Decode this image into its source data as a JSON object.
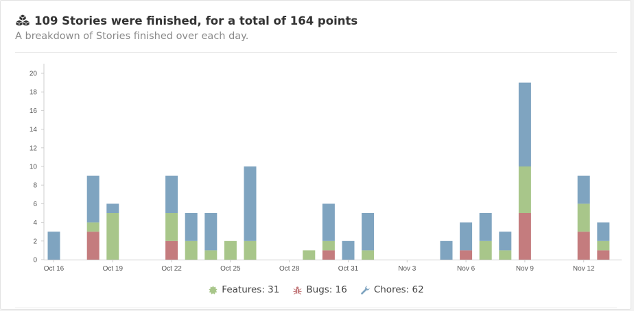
{
  "header": {
    "icon": "cubes-icon",
    "title": "109 Stories were finished, for a total of 164 points",
    "subtitle": "A breakdown of Stories finished over each day."
  },
  "legend": {
    "features": {
      "icon": "starburst-icon",
      "label": "Features: 31"
    },
    "bugs": {
      "icon": "bug-icon",
      "label": "Bugs: 16"
    },
    "chores": {
      "icon": "wrench-icon",
      "label": "Chores: 62"
    }
  },
  "colors": {
    "features": "#a8c68a",
    "bugs": "#c47c7e",
    "chores": "#7fa4c0"
  },
  "chart_data": {
    "type": "bar",
    "stacked": true,
    "title": "109 Stories were finished, for a total of 164 points",
    "subtitle": "A breakdown of Stories finished over each day.",
    "categories": [
      "Oct 16",
      "Oct 17",
      "Oct 18",
      "Oct 19",
      "Oct 20",
      "Oct 21",
      "Oct 22",
      "Oct 23",
      "Oct 24",
      "Oct 25",
      "Oct 26",
      "Oct 27",
      "Oct 28",
      "Oct 29",
      "Oct 30",
      "Oct 31",
      "Nov 1",
      "Nov 2",
      "Nov 3",
      "Nov 4",
      "Nov 5",
      "Nov 6",
      "Nov 7",
      "Nov 8",
      "Nov 9",
      "Nov 10",
      "Nov 11",
      "Nov 12",
      "Nov 13"
    ],
    "xticks": [
      "Oct 16",
      "Oct 19",
      "Oct 22",
      "Oct 25",
      "Oct 28",
      "Oct 31",
      "Nov 3",
      "Nov 6",
      "Nov 9",
      "Nov 12"
    ],
    "ylim": [
      0,
      20
    ],
    "yticks": [
      0,
      2,
      4,
      6,
      8,
      10,
      12,
      14,
      16,
      18,
      20
    ],
    "series": [
      {
        "name": "Bugs",
        "key": "bugs",
        "values": [
          0,
          0,
          3,
          0,
          0,
          0,
          2,
          0,
          0,
          0,
          0,
          0,
          0,
          0,
          1,
          0,
          0,
          0,
          0,
          0,
          0,
          1,
          0,
          0,
          5,
          0,
          0,
          3,
          1
        ]
      },
      {
        "name": "Features",
        "key": "features",
        "values": [
          0,
          0,
          1,
          5,
          0,
          0,
          3,
          2,
          1,
          2,
          2,
          0,
          0,
          1,
          1,
          0,
          1,
          0,
          0,
          0,
          0,
          0,
          2,
          1,
          5,
          0,
          0,
          3,
          1
        ]
      },
      {
        "name": "Chores",
        "key": "chores",
        "values": [
          3,
          0,
          5,
          1,
          0,
          0,
          4,
          3,
          4,
          0,
          8,
          0,
          0,
          0,
          4,
          2,
          4,
          0,
          0,
          0,
          2,
          3,
          3,
          2,
          9,
          0,
          0,
          3,
          2
        ]
      }
    ],
    "legend_position": "bottom-center",
    "grid": false
  }
}
